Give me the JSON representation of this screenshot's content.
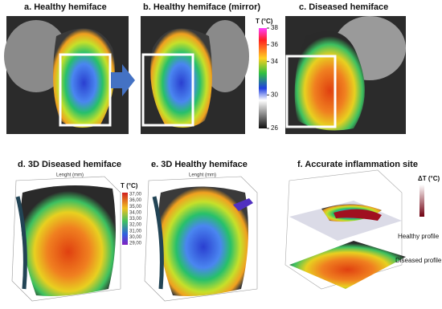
{
  "panels": [
    {
      "label": "a. Healthy hemiface"
    },
    {
      "label": "b. Healthy hemiface (mirror)"
    },
    {
      "label": "c. Diseased hemiface"
    },
    {
      "label": "d. 3D Diseased hemiface"
    },
    {
      "label": "e. 3D Healthy hemiface"
    },
    {
      "label": "f. Accurate inflammation site"
    }
  ],
  "colorbar": {
    "title": "T (°C)",
    "lim": [
      26,
      38
    ],
    "ticks": [
      38,
      36,
      34,
      30,
      26
    ]
  },
  "panel_d": {
    "axis_label": "Lenght (mm)",
    "colorbar_title": "T (°C)",
    "colorbar_ticks": [
      "37,00",
      "36,00",
      "35,00",
      "34,00",
      "33,00",
      "32,00",
      "31,00",
      "30,00",
      "29,00"
    ]
  },
  "panel_e": {
    "axis_label": "Lenght (mm)"
  },
  "panel_f": {
    "colorbar_title": "ΔT (°C)",
    "healthy": "Healthy profile",
    "diseased": "Diseased profile"
  }
}
